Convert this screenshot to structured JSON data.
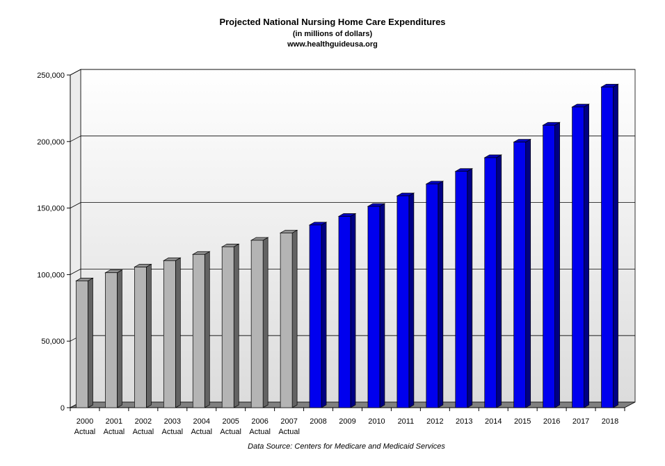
{
  "title": "Projected National Nursing Home Care Expenditures",
  "subtitle": "(in millions of dollars)",
  "website": "www.healthguideusa.org",
  "source": "Data Source: Centers for Medicare and Medicaid Services",
  "colors": {
    "actual": "#b4b4b4",
    "projected": "#0000ee",
    "floor": "#808080",
    "back_top": "#ffffff",
    "back_bottom": "#dcdcdc"
  },
  "chart_data": {
    "type": "bar",
    "title": "Projected National Nursing Home Care Expenditures",
    "subtitle": "(in millions of dollars)",
    "categories": [
      "2000",
      "2001",
      "2002",
      "2003",
      "2004",
      "2005",
      "2006",
      "2007",
      "2008",
      "2009",
      "2010",
      "2011",
      "2012",
      "2013",
      "2014",
      "2015",
      "2016",
      "2017",
      "2018"
    ],
    "category_sublabels": [
      "Actual",
      "Actual",
      "Actual",
      "Actual",
      "Actual",
      "Actual",
      "Actual",
      "Actual",
      "",
      "",
      "",
      "",
      "",
      "",
      "",
      "",
      "",
      "",
      ""
    ],
    "values": [
      95300,
      101400,
      105700,
      110500,
      115200,
      120900,
      125800,
      131300,
      137300,
      143800,
      151300,
      159200,
      168100,
      177600,
      187900,
      199600,
      212300,
      226000,
      241000
    ],
    "kinds": [
      "actual",
      "actual",
      "actual",
      "actual",
      "actual",
      "actual",
      "actual",
      "actual",
      "projected",
      "projected",
      "projected",
      "projected",
      "projected",
      "projected",
      "projected",
      "projected",
      "projected",
      "projected",
      "projected"
    ],
    "ylim": [
      0,
      250000
    ],
    "yticks": [
      0,
      50000,
      100000,
      150000,
      200000,
      250000
    ],
    "ytick_labels": [
      "0",
      "50,000",
      "100,000",
      "150,000",
      "200,000",
      "250,000"
    ],
    "grid": true,
    "legend": "none"
  }
}
